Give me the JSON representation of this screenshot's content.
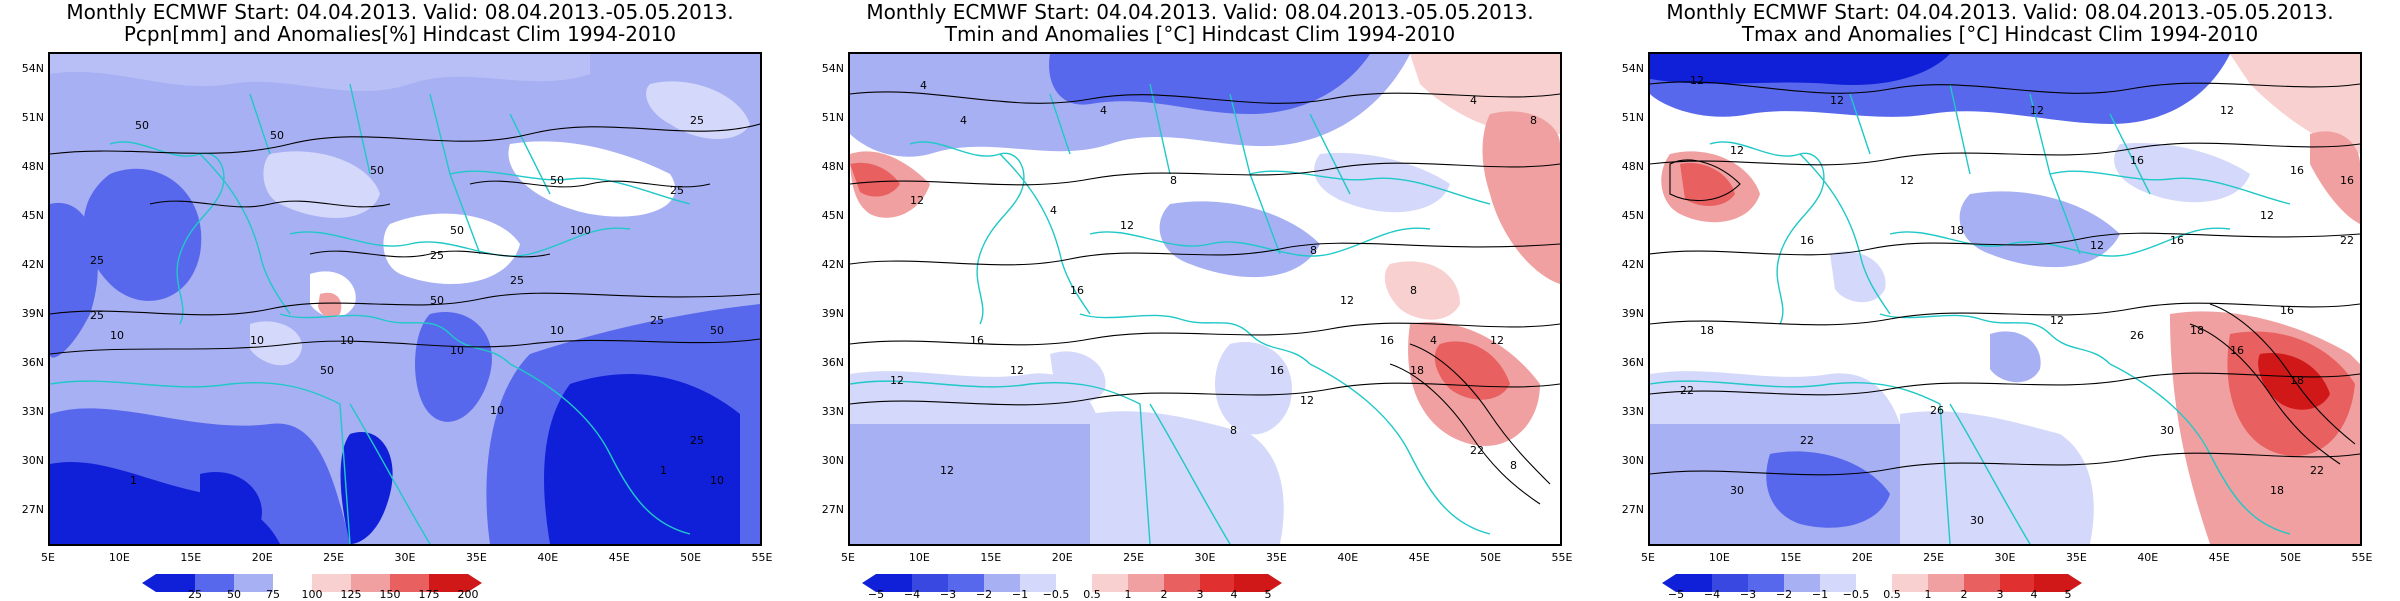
{
  "panels": [
    {
      "title_line1": "Monthly ECMWF Start: 04.04.2013. Valid: 08.04.2013.-05.05.2013.",
      "title_line2": "Pcpn[mm] and Anomalies[%] Hindcast Clim 1994-2010",
      "colorbar_ticks": [
        "25",
        "50",
        "75",
        "100",
        "125",
        "150",
        "175",
        "200"
      ],
      "contour_labels": [
        "50",
        "50",
        "50",
        "50",
        "25",
        "25",
        "50",
        "25",
        "100",
        "25",
        "50",
        "50",
        "10",
        "25",
        "50",
        "10",
        "10",
        "25",
        "25",
        "10",
        "10",
        "10",
        "25",
        "10",
        "1",
        "1"
      ]
    },
    {
      "title_line1": "Monthly ECMWF Start: 04.04.2013. Valid: 08.04.2013.-05.05.2013.",
      "title_line2": "Tmin and Anomalies [°C] Hindcast Clim 1994-2010",
      "colorbar_ticks": [
        "−5",
        "−4",
        "−3",
        "−2",
        "−1",
        "−0.5",
        "0.5",
        "1",
        "2",
        "3",
        "4",
        "5"
      ],
      "contour_labels": [
        "4",
        "4",
        "4",
        "4",
        "8",
        "8",
        "12",
        "12",
        "16",
        "16",
        "12",
        "12",
        "8",
        "12",
        "16",
        "16",
        "4",
        "18",
        "12",
        "8",
        "22",
        "12",
        "8",
        "8",
        "12",
        "4"
      ]
    },
    {
      "title_line1": "Monthly ECMWF Start: 04.04.2013. Valid: 08.04.2013.-05.05.2013.",
      "title_line2": "Tmax and Anomalies [°C] Hindcast Clim 1994-2010",
      "colorbar_ticks": [
        "−5",
        "−4",
        "−3",
        "−2",
        "−1",
        "−0.5",
        "0.5",
        "1",
        "2",
        "3",
        "4",
        "5"
      ],
      "contour_labels": [
        "12",
        "12",
        "12",
        "12",
        "16",
        "12",
        "12",
        "16",
        "18",
        "16",
        "16",
        "12",
        "22",
        "16",
        "18",
        "22",
        "18",
        "26",
        "12",
        "16",
        "22",
        "26",
        "30",
        "30",
        "18",
        "30",
        "18",
        "16",
        "22",
        "12"
      ]
    }
  ],
  "lat_labels": [
    "54N",
    "51N",
    "48N",
    "45N",
    "42N",
    "39N",
    "36N",
    "33N",
    "30N",
    "27N"
  ],
  "lon_labels": [
    "5E",
    "10E",
    "15E",
    "20E",
    "25E",
    "30E",
    "35E",
    "40E",
    "45E",
    "50E",
    "55E"
  ],
  "colors": {
    "frame": "#000000",
    "coast": "#20c8c8",
    "deep_blue": "#1020d8",
    "mid_blue": "#5868ec",
    "light_blue": "#a8b0f4",
    "pale_blue": "#d4d8fa",
    "pale_red": "#f8d0d0",
    "light_red": "#f0a0a0",
    "mid_red": "#e86060",
    "deep_red": "#d01818"
  }
}
